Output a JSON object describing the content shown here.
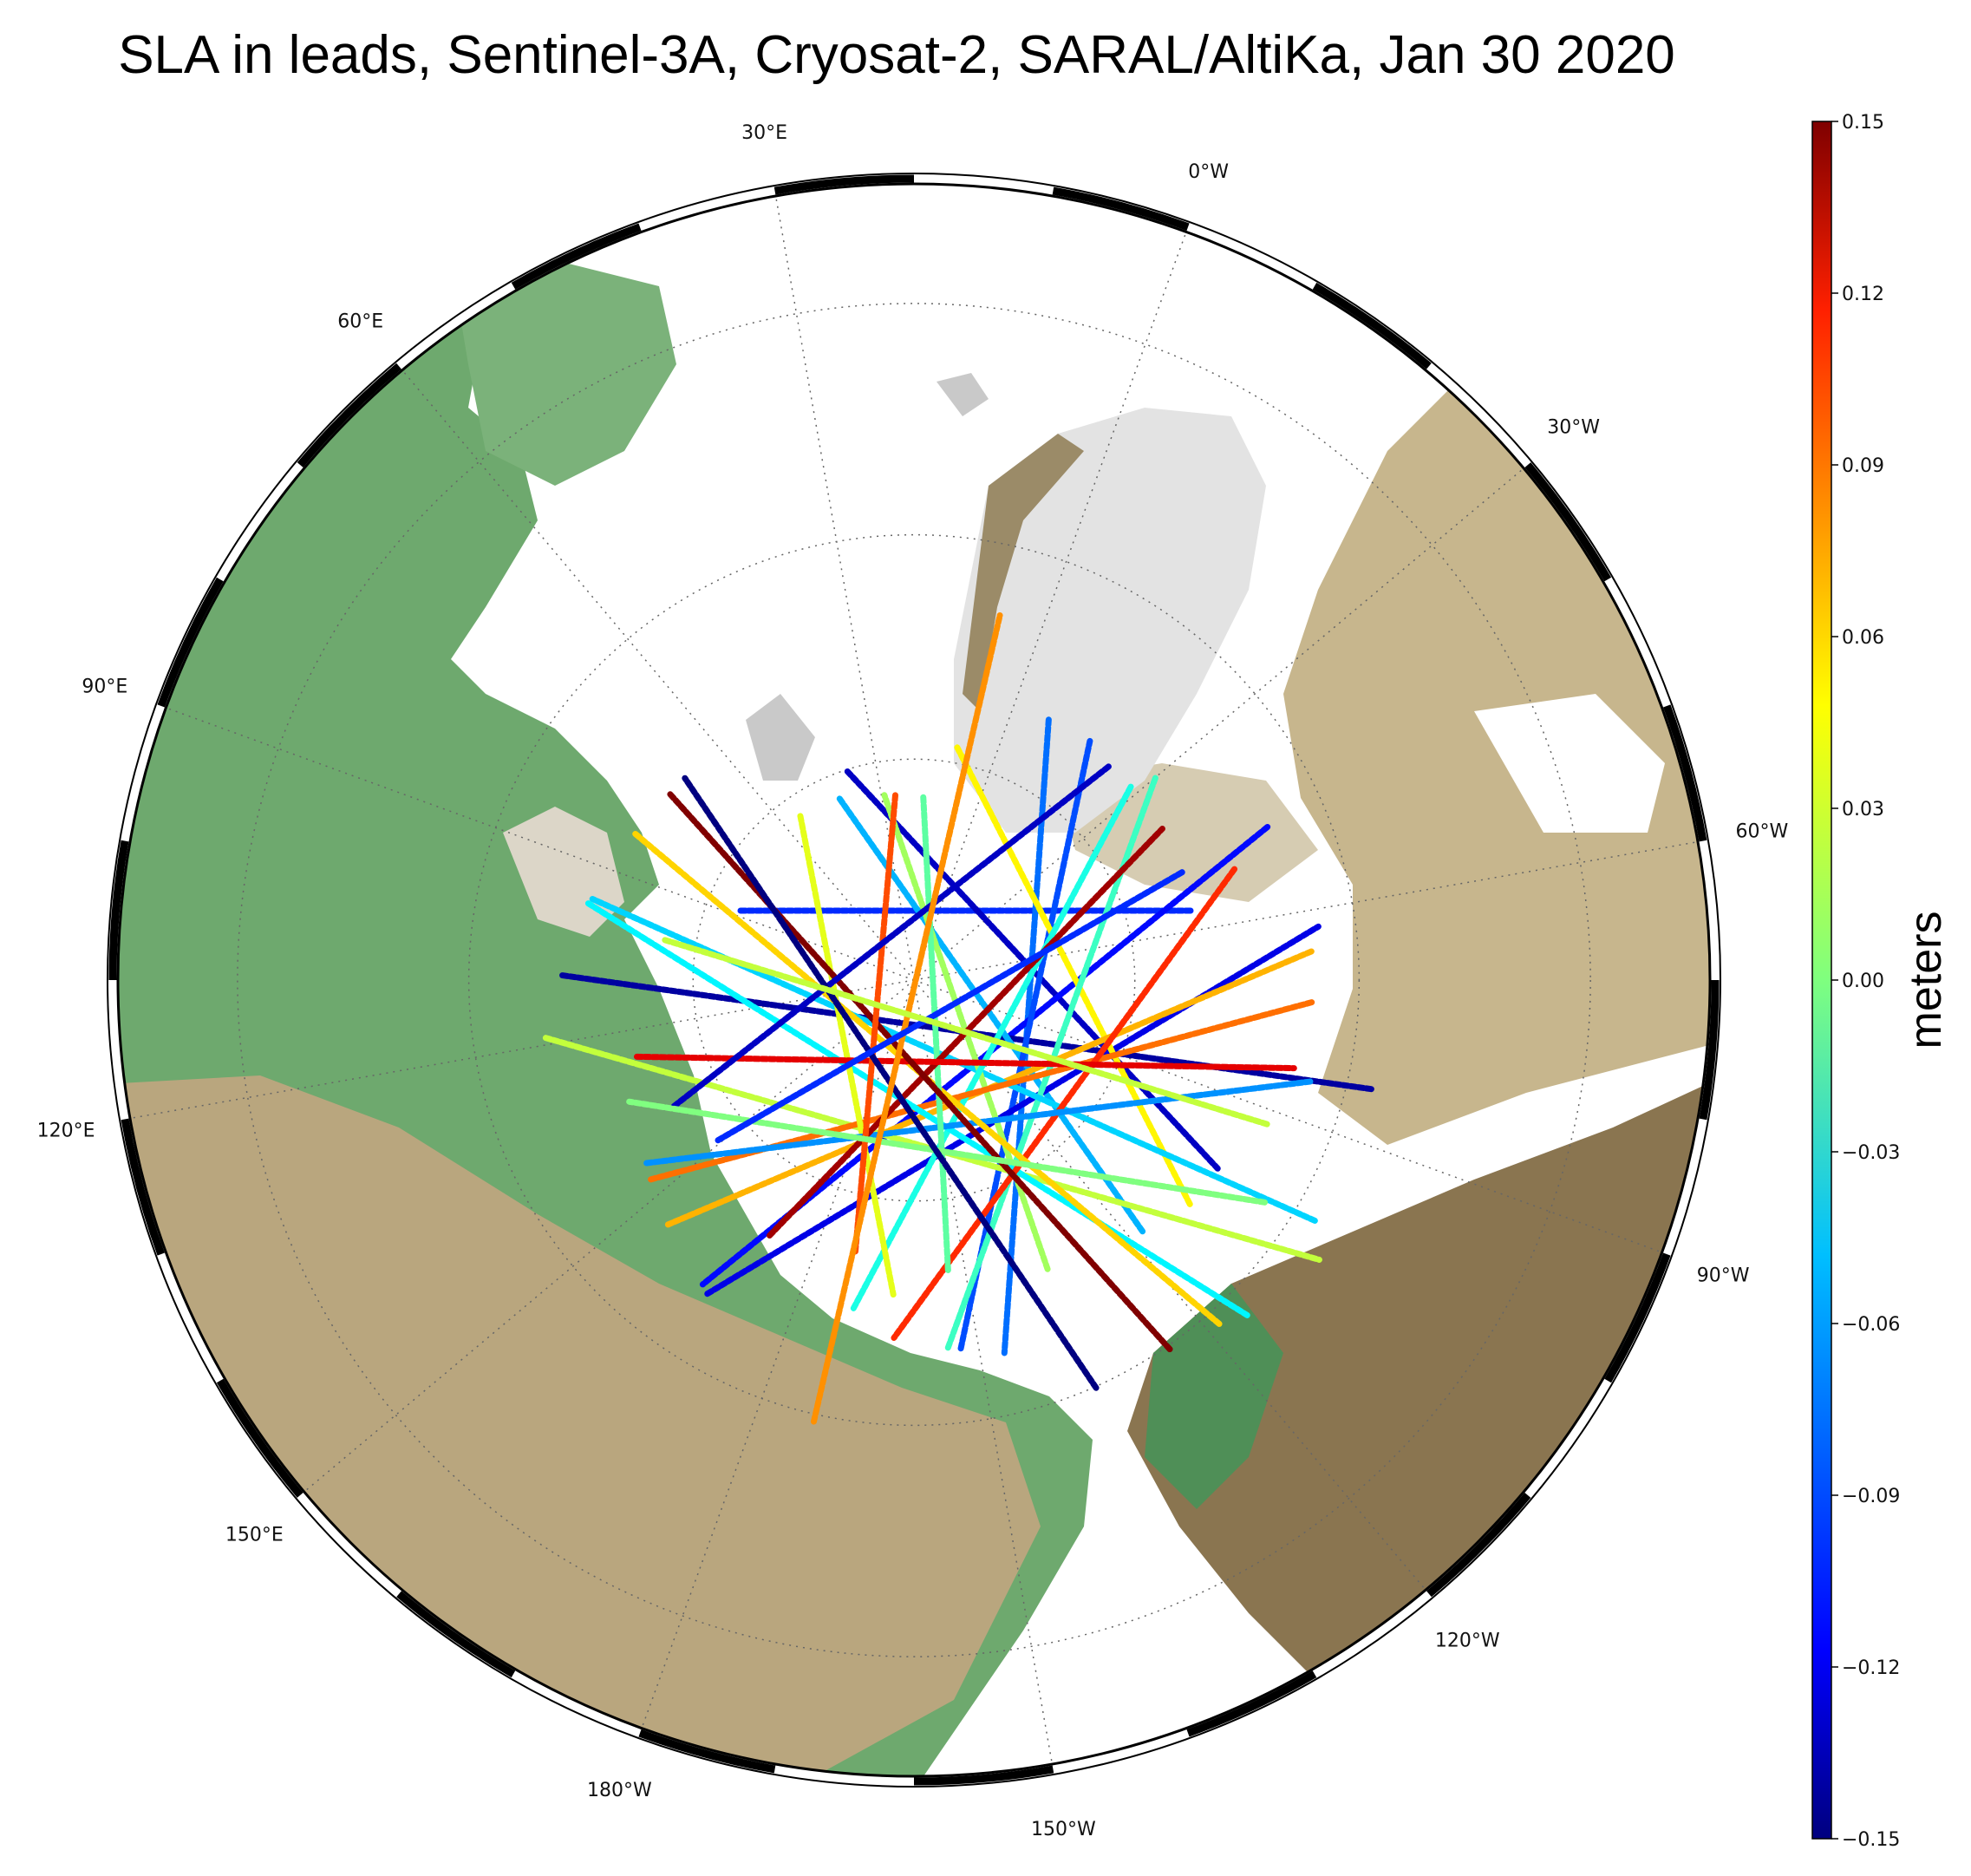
{
  "title": "SLA in leads, Sentinel-3A, Cryosat-2, SARAL/AltiKa, Jan 30 2020",
  "map": {
    "projection": "north-polar-stereographic",
    "longitude_labels": [
      {
        "text": "0°W",
        "lon": 0
      },
      {
        "text": "30°W",
        "lon": -30
      },
      {
        "text": "60°W",
        "lon": -60
      },
      {
        "text": "90°W",
        "lon": -90
      },
      {
        "text": "120°W",
        "lon": -120
      },
      {
        "text": "150°W",
        "lon": -150
      },
      {
        "text": "180°W",
        "lon": 180
      },
      {
        "text": "150°E",
        "lon": 150
      },
      {
        "text": "120°E",
        "lon": 120
      },
      {
        "text": "90°E",
        "lon": 90
      },
      {
        "text": "60°E",
        "lon": 60
      },
      {
        "text": "30°E",
        "lon": 30
      }
    ],
    "parallels_deg": [
      60,
      70,
      80
    ],
    "meridian_step_deg": 30,
    "colors": {
      "ocean_ice": "#ffffff",
      "land_low": "#5e9e66",
      "land_mid": "#c2b596",
      "land_high": "#8f7a4f",
      "greenland_ice": "#d8d8d8",
      "graticule": "#666666"
    }
  },
  "colorbar": {
    "label": "meters",
    "cmap": "jet",
    "min": -0.15,
    "max": 0.15,
    "ticks": [
      "0.15",
      "0.12",
      "0.09",
      "0.06",
      "0.03",
      "0.00",
      "−0.03",
      "−0.06",
      "−0.09",
      "−0.12",
      "−0.15"
    ]
  },
  "tracks": [
    {
      "sla": -0.1
    },
    {
      "sla": -0.13
    },
    {
      "sla": -0.08
    },
    {
      "sla": -0.11
    },
    {
      "sla": -0.14
    },
    {
      "sla": -0.06
    },
    {
      "sla": -0.09
    },
    {
      "sla": -0.12
    },
    {
      "sla": 0.02
    },
    {
      "sla": 0.04
    },
    {
      "sla": -0.02
    },
    {
      "sla": 0.06
    },
    {
      "sla": -0.05
    },
    {
      "sla": 0.01
    },
    {
      "sla": -0.03
    },
    {
      "sla": 0.08
    },
    {
      "sla": -0.04
    },
    {
      "sla": 0.03
    },
    {
      "sla": 0.1
    },
    {
      "sla": -0.07
    },
    {
      "sla": 0.05
    },
    {
      "sla": -0.01
    },
    {
      "sla": 0.14
    },
    {
      "sla": 0.12
    },
    {
      "sla": 0.15
    },
    {
      "sla": 0.09
    },
    {
      "sla": -0.13
    },
    {
      "sla": 0.0
    },
    {
      "sla": -0.15
    },
    {
      "sla": 0.07
    },
    {
      "sla": -0.1
    },
    {
      "sla": 0.02
    }
  ]
}
